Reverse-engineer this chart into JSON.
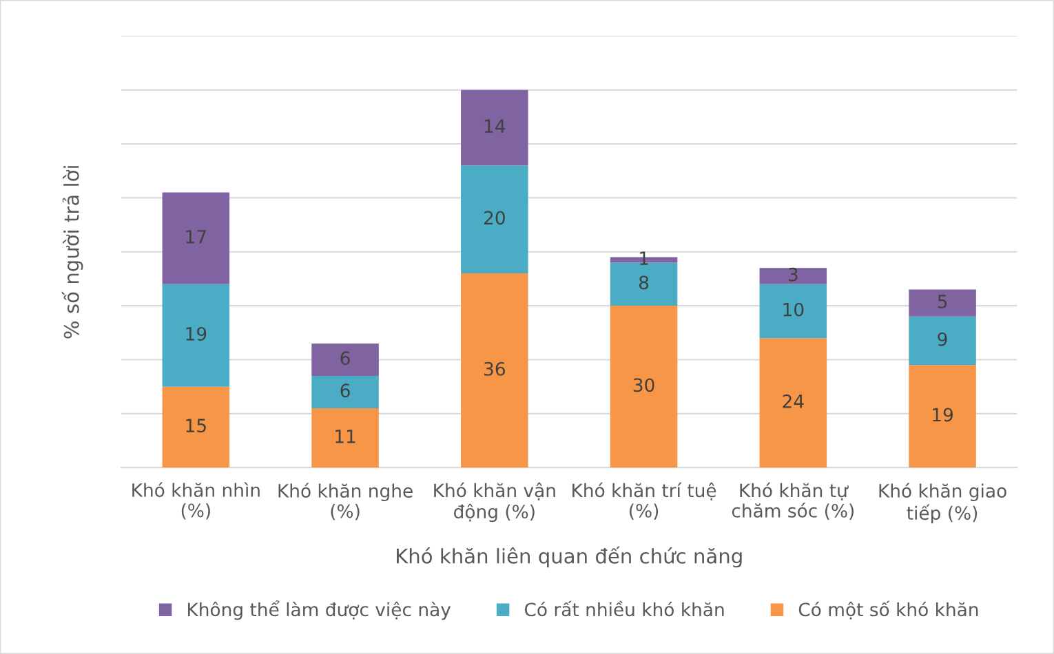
{
  "chart_data": {
    "type": "bar",
    "stacked": true,
    "xlabel": "Khó khăn liên quan đến chức năng",
    "ylabel": "% số người trả lời",
    "categories": [
      "Khó khăn nhìn\n(%)",
      "Khó khăn nghe\n(%)",
      "Khó khăn vận\nđộng (%)",
      "Khó khăn trí tuệ\n(%)",
      "Khó khăn tự\nchăm sóc (%)",
      "Khó khăn giao\ntiếp (%)"
    ],
    "series": [
      {
        "name": "Có một số khó khăn",
        "color": "#f79646",
        "values": [
          15,
          11,
          36,
          30,
          24,
          19
        ]
      },
      {
        "name": "Có rất nhiều khó khăn",
        "color": "#4bacc6",
        "values": [
          19,
          6,
          20,
          8,
          10,
          9
        ]
      },
      {
        "name": "Không thể làm được việc này",
        "color": "#8064a2",
        "values": [
          17,
          6,
          14,
          1,
          3,
          5
        ]
      }
    ],
    "ylim": [
      0,
      80
    ],
    "yticks": [
      {
        "value": 0,
        "label": null
      },
      {
        "value": 10,
        "label": null
      },
      {
        "value": 20,
        "label": null
      },
      {
        "value": 30,
        "label": null
      },
      {
        "value": 40,
        "label": null
      },
      {
        "value": 50,
        "label": null
      },
      {
        "value": 60,
        "label": null
      },
      {
        "value": 70,
        "label": null
      },
      {
        "value": 80,
        "label": null
      }
    ],
    "grid": "y",
    "legend": "bottom",
    "data_labels": true,
    "tick_labels": "x"
  }
}
